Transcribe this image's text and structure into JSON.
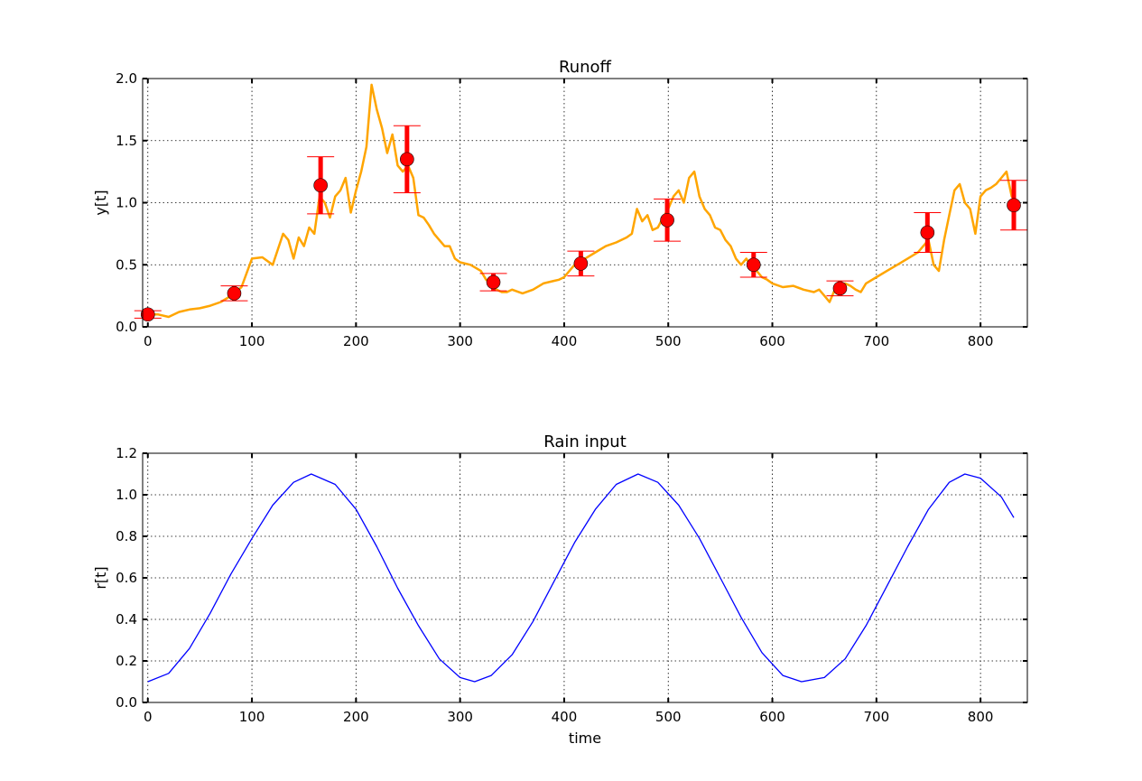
{
  "chart_data": [
    {
      "type": "line",
      "title": "Runoff",
      "xlabel": "",
      "ylabel": "y[t]",
      "xlim": [
        -5,
        845
      ],
      "ylim": [
        0,
        2.0
      ],
      "xticks": [
        0,
        100,
        200,
        300,
        400,
        500,
        600,
        700,
        800
      ],
      "yticks": [
        0.0,
        0.5,
        1.0,
        1.5,
        2.0
      ],
      "ytick_labels": [
        "0.0",
        "0.5",
        "1.0",
        "1.5",
        "2.0"
      ],
      "grid": true,
      "colors": {
        "line": "#ffa500",
        "marker": "#ff0000",
        "errorbar": "#ff0000"
      },
      "series": [
        {
          "kind": "line",
          "x": [
            0,
            10,
            20,
            30,
            40,
            50,
            60,
            70,
            80,
            90,
            100,
            110,
            120,
            130,
            135,
            140,
            145,
            150,
            155,
            160,
            165,
            170,
            175,
            180,
            185,
            190,
            195,
            200,
            205,
            210,
            215,
            220,
            225,
            230,
            235,
            240,
            245,
            250,
            255,
            260,
            265,
            270,
            275,
            280,
            285,
            290,
            295,
            300,
            310,
            320,
            325,
            330,
            335,
            340,
            345,
            350,
            360,
            370,
            380,
            390,
            395,
            400,
            405,
            410,
            415,
            420,
            430,
            440,
            450,
            460,
            465,
            470,
            475,
            480,
            485,
            490,
            495,
            500,
            505,
            510,
            515,
            520,
            525,
            530,
            535,
            540,
            545,
            550,
            555,
            560,
            565,
            570,
            575,
            580,
            585,
            590,
            595,
            600,
            610,
            620,
            630,
            640,
            645,
            650,
            655,
            660,
            665,
            670,
            675,
            680,
            685,
            690,
            700,
            710,
            720,
            730,
            740,
            745,
            750,
            755,
            760,
            765,
            770,
            775,
            780,
            785,
            790,
            795,
            800,
            805,
            810,
            815,
            820,
            825,
            830,
            835
          ],
          "y": [
            0.1,
            0.1,
            0.08,
            0.12,
            0.14,
            0.15,
            0.17,
            0.2,
            0.25,
            0.32,
            0.55,
            0.56,
            0.5,
            0.75,
            0.7,
            0.55,
            0.72,
            0.65,
            0.8,
            0.75,
            1.05,
            1.0,
            0.88,
            1.05,
            1.1,
            1.2,
            0.92,
            1.1,
            1.25,
            1.45,
            1.95,
            1.75,
            1.6,
            1.4,
            1.55,
            1.3,
            1.25,
            1.3,
            1.2,
            0.9,
            0.88,
            0.82,
            0.75,
            0.7,
            0.65,
            0.65,
            0.55,
            0.52,
            0.5,
            0.45,
            0.38,
            0.35,
            0.3,
            0.28,
            0.28,
            0.3,
            0.27,
            0.3,
            0.35,
            0.37,
            0.38,
            0.4,
            0.45,
            0.5,
            0.53,
            0.55,
            0.6,
            0.65,
            0.68,
            0.72,
            0.75,
            0.95,
            0.85,
            0.9,
            0.78,
            0.8,
            0.88,
            0.95,
            1.05,
            1.1,
            1.0,
            1.2,
            1.25,
            1.05,
            0.95,
            0.9,
            0.8,
            0.78,
            0.7,
            0.65,
            0.55,
            0.5,
            0.55,
            0.48,
            0.45,
            0.4,
            0.38,
            0.35,
            0.32,
            0.33,
            0.3,
            0.28,
            0.3,
            0.25,
            0.2,
            0.3,
            0.32,
            0.35,
            0.33,
            0.3,
            0.28,
            0.35,
            0.4,
            0.45,
            0.5,
            0.55,
            0.6,
            0.65,
            0.7,
            0.5,
            0.45,
            0.7,
            0.9,
            1.1,
            1.15,
            1.0,
            0.95,
            0.75,
            1.05,
            1.1,
            1.12,
            1.15,
            1.2,
            1.25,
            1.05,
            1.0
          ]
        },
        {
          "kind": "errorbar",
          "x": [
            0,
            83,
            166,
            249,
            332,
            416,
            499,
            582,
            665,
            749,
            832
          ],
          "y": [
            0.1,
            0.27,
            1.14,
            1.35,
            0.36,
            0.51,
            0.86,
            0.5,
            0.31,
            0.76,
            0.98
          ],
          "yerr": [
            0.03,
            0.06,
            0.23,
            0.27,
            0.07,
            0.1,
            0.17,
            0.1,
            0.06,
            0.16,
            0.2
          ]
        }
      ]
    },
    {
      "type": "line",
      "title": "Rain input",
      "xlabel": "time",
      "ylabel": "r[t]",
      "xlim": [
        -5,
        845
      ],
      "ylim": [
        0,
        1.2
      ],
      "xticks": [
        0,
        100,
        200,
        300,
        400,
        500,
        600,
        700,
        800
      ],
      "yticks": [
        0.0,
        0.2,
        0.4,
        0.6,
        0.8,
        1.0,
        1.2
      ],
      "ytick_labels": [
        "0.0",
        "0.2",
        "0.4",
        "0.6",
        "0.8",
        "1.0",
        "1.2"
      ],
      "grid": true,
      "colors": {
        "line": "#0000ff"
      },
      "series": [
        {
          "kind": "line",
          "x": [
            0,
            20,
            40,
            60,
            80,
            100,
            120,
            140,
            157,
            180,
            200,
            220,
            240,
            260,
            280,
            300,
            314,
            330,
            350,
            370,
            390,
            410,
            430,
            450,
            471,
            490,
            510,
            530,
            550,
            570,
            590,
            610,
            628,
            650,
            670,
            690,
            710,
            730,
            750,
            770,
            785,
            800,
            820,
            832
          ],
          "y": [
            0.1,
            0.14,
            0.26,
            0.43,
            0.62,
            0.79,
            0.95,
            1.06,
            1.1,
            1.05,
            0.93,
            0.75,
            0.55,
            0.37,
            0.21,
            0.12,
            0.1,
            0.13,
            0.23,
            0.39,
            0.58,
            0.77,
            0.93,
            1.05,
            1.1,
            1.06,
            0.95,
            0.79,
            0.6,
            0.41,
            0.24,
            0.13,
            0.1,
            0.12,
            0.21,
            0.37,
            0.56,
            0.75,
            0.93,
            1.06,
            1.1,
            1.08,
            0.99,
            0.89
          ]
        }
      ]
    }
  ]
}
